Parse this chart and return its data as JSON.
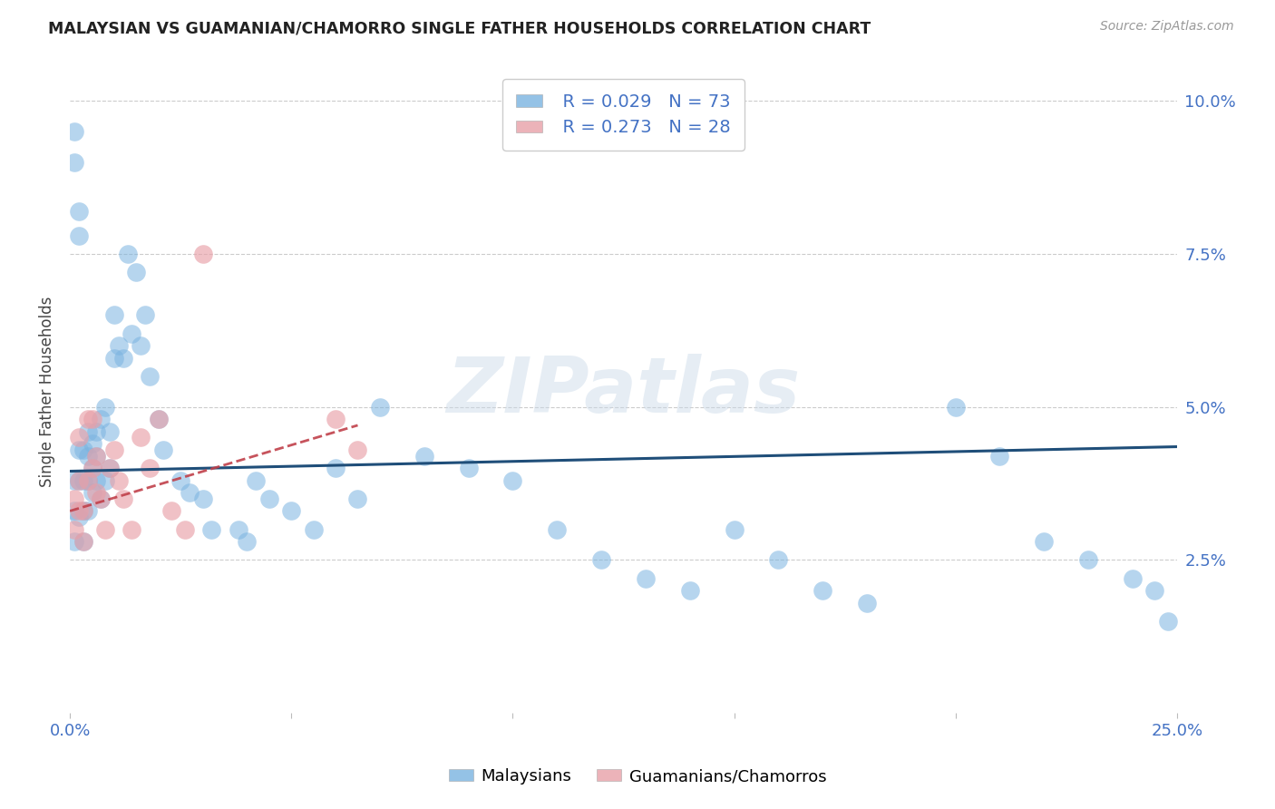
{
  "title": "MALAYSIAN VS GUAMANIAN/CHAMORRO SINGLE FATHER HOUSEHOLDS CORRELATION CHART",
  "source": "Source: ZipAtlas.com",
  "ylabel": "Single Father Households",
  "ytick_labels": [
    "2.5%",
    "5.0%",
    "7.5%",
    "10.0%"
  ],
  "ytick_values": [
    0.025,
    0.05,
    0.075,
    0.1
  ],
  "xlim": [
    0.0,
    0.25
  ],
  "ylim": [
    0.0,
    0.105
  ],
  "watermark": "ZIPatlas",
  "legend_blue_r": "R = 0.029",
  "legend_blue_n": "N = 73",
  "legend_pink_r": "R = 0.273",
  "legend_pink_n": "N = 28",
  "blue_color": "#7ab3e0",
  "pink_color": "#e8a0a8",
  "line_blue": "#1f4e79",
  "line_pink": "#c0404a",
  "malaysians_x": [
    0.001,
    0.001,
    0.001,
    0.001,
    0.001,
    0.002,
    0.002,
    0.002,
    0.002,
    0.002,
    0.003,
    0.003,
    0.003,
    0.003,
    0.004,
    0.004,
    0.004,
    0.004,
    0.005,
    0.005,
    0.005,
    0.006,
    0.006,
    0.006,
    0.007,
    0.007,
    0.008,
    0.008,
    0.009,
    0.009,
    0.01,
    0.01,
    0.011,
    0.012,
    0.013,
    0.014,
    0.015,
    0.016,
    0.017,
    0.018,
    0.02,
    0.021,
    0.025,
    0.027,
    0.03,
    0.032,
    0.038,
    0.04,
    0.042,
    0.045,
    0.05,
    0.055,
    0.06,
    0.065,
    0.07,
    0.08,
    0.09,
    0.1,
    0.11,
    0.12,
    0.13,
    0.14,
    0.15,
    0.16,
    0.17,
    0.18,
    0.2,
    0.21,
    0.22,
    0.23,
    0.24,
    0.245,
    0.248
  ],
  "malaysians_y": [
    0.095,
    0.09,
    0.038,
    0.033,
    0.028,
    0.082,
    0.078,
    0.043,
    0.038,
    0.032,
    0.043,
    0.038,
    0.033,
    0.028,
    0.046,
    0.042,
    0.038,
    0.033,
    0.044,
    0.04,
    0.036,
    0.046,
    0.042,
    0.038,
    0.048,
    0.035,
    0.05,
    0.038,
    0.046,
    0.04,
    0.065,
    0.058,
    0.06,
    0.058,
    0.075,
    0.062,
    0.072,
    0.06,
    0.065,
    0.055,
    0.048,
    0.043,
    0.038,
    0.036,
    0.035,
    0.03,
    0.03,
    0.028,
    0.038,
    0.035,
    0.033,
    0.03,
    0.04,
    0.035,
    0.05,
    0.042,
    0.04,
    0.038,
    0.03,
    0.025,
    0.022,
    0.02,
    0.03,
    0.025,
    0.02,
    0.018,
    0.05,
    0.042,
    0.028,
    0.025,
    0.022,
    0.02,
    0.015
  ],
  "guamanians_x": [
    0.001,
    0.001,
    0.002,
    0.002,
    0.002,
    0.003,
    0.003,
    0.004,
    0.004,
    0.005,
    0.005,
    0.006,
    0.006,
    0.007,
    0.008,
    0.009,
    0.01,
    0.011,
    0.012,
    0.014,
    0.016,
    0.018,
    0.02,
    0.023,
    0.026,
    0.03,
    0.06,
    0.065
  ],
  "guamanians_y": [
    0.035,
    0.03,
    0.045,
    0.038,
    0.033,
    0.033,
    0.028,
    0.048,
    0.038,
    0.048,
    0.04,
    0.042,
    0.036,
    0.035,
    0.03,
    0.04,
    0.043,
    0.038,
    0.035,
    0.03,
    0.045,
    0.04,
    0.048,
    0.033,
    0.03,
    0.075,
    0.048,
    0.043
  ],
  "blue_line_x": [
    0.0,
    0.25
  ],
  "blue_line_y": [
    0.0395,
    0.0435
  ],
  "pink_line_x": [
    0.0,
    0.065
  ],
  "pink_line_y": [
    0.033,
    0.047
  ]
}
